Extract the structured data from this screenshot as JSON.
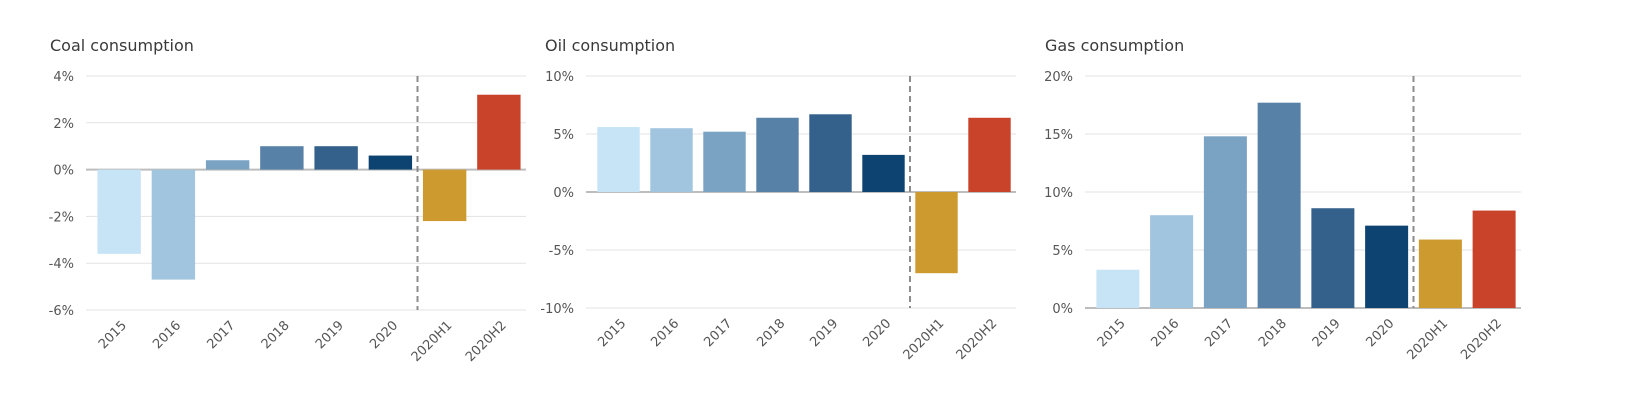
{
  "chart_data": [
    {
      "type": "bar",
      "title": "Coal consumption",
      "categories": [
        "2015",
        "2016",
        "2017",
        "2018",
        "2019",
        "2020",
        "2020H1",
        "2020H2"
      ],
      "values": [
        -3.6,
        -4.7,
        0.4,
        1.0,
        1.0,
        0.6,
        -2.2,
        3.2
      ],
      "colors": [
        "#c6e4f6",
        "#a1c4df",
        "#7aa3c3",
        "#5881a8",
        "#33618b",
        "#0d4370",
        "#cc9a2e",
        "#c9432b"
      ],
      "yticks": [
        -6,
        -4,
        -2,
        0,
        2,
        4
      ],
      "yticklabels": [
        "-6%",
        "-4%",
        "-2%",
        "0%",
        "2%",
        "4%"
      ],
      "ylim": [
        -6,
        4
      ],
      "divider_after": "2020",
      "xlabel": "",
      "ylabel": ""
    },
    {
      "type": "bar",
      "title": "Oil consumption",
      "categories": [
        "2015",
        "2016",
        "2017",
        "2018",
        "2019",
        "2020",
        "2020H1",
        "2020H2"
      ],
      "values": [
        5.6,
        5.5,
        5.2,
        6.4,
        6.7,
        3.2,
        -7.0,
        6.4
      ],
      "colors": [
        "#c6e4f6",
        "#a1c4df",
        "#7aa3c3",
        "#5881a8",
        "#33618b",
        "#0d4370",
        "#cc9a2e",
        "#c9432b"
      ],
      "yticks": [
        -10,
        -5,
        0,
        5,
        10
      ],
      "yticklabels": [
        "-10%",
        "-5%",
        "0%",
        "5%",
        "10%"
      ],
      "ylim": [
        -10,
        10
      ],
      "divider_after": "2020",
      "xlabel": "",
      "ylabel": ""
    },
    {
      "type": "bar",
      "title": "Gas consumption",
      "categories": [
        "2015",
        "2016",
        "2017",
        "2018",
        "2019",
        "2020",
        "2020H1",
        "2020H2"
      ],
      "values": [
        3.3,
        8.0,
        14.8,
        17.7,
        8.6,
        7.1,
        5.9,
        8.4
      ],
      "colors": [
        "#c6e4f6",
        "#a1c4df",
        "#7aa3c3",
        "#5881a8",
        "#33618b",
        "#0d4370",
        "#cc9a2e",
        "#c9432b"
      ],
      "yticks": [
        0,
        5,
        10,
        15,
        20
      ],
      "yticklabels": [
        "0%",
        "5%",
        "10%",
        "15%",
        "20%"
      ],
      "ylim": [
        0,
        20
      ],
      "divider_after": "2020",
      "xlabel": "",
      "ylabel": ""
    }
  ]
}
